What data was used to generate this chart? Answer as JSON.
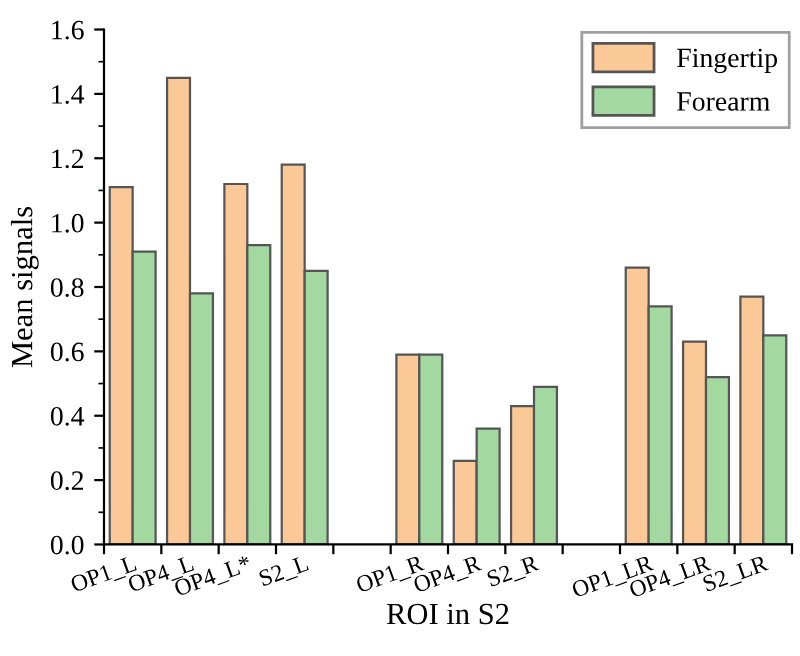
{
  "chart_data": {
    "type": "bar",
    "xlabel": "ROI in S2",
    "ylabel": "Mean signals",
    "categories": [
      "OP1_L",
      "OP4_L",
      "OP4_L*",
      "S2_L",
      null,
      "OP1_R",
      "OP4_R",
      "S2_R",
      null,
      "OP1_LR",
      "OP4_LR",
      "S2_LR"
    ],
    "series": [
      {
        "name": "Fingertip",
        "color": "#fbc897",
        "values": [
          1.11,
          1.45,
          1.12,
          1.18,
          null,
          0.59,
          0.26,
          0.43,
          null,
          0.86,
          0.63,
          0.77
        ]
      },
      {
        "name": "Forearm",
        "color": "#a3d9a0",
        "values": [
          0.91,
          0.78,
          0.93,
          0.85,
          null,
          0.59,
          0.36,
          0.49,
          null,
          0.74,
          0.52,
          0.65
        ]
      }
    ],
    "ylim": [
      0,
      1.6
    ],
    "yticks": [
      {
        "value": 0,
        "label": "0.0"
      },
      0.2,
      0.4,
      0.6,
      0.8,
      {
        "value": 1,
        "label": "1.0"
      },
      1.2,
      1.4,
      1.6
    ],
    "legend": "top right",
    "grid": false
  }
}
